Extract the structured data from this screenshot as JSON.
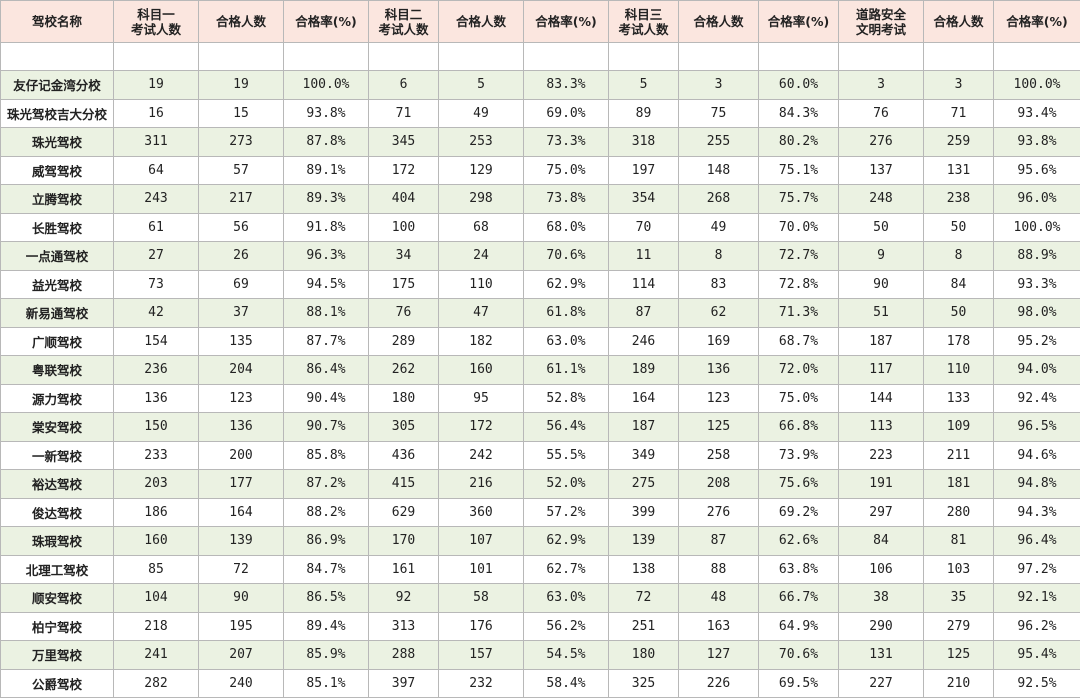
{
  "table": {
    "headers": [
      "驾校名称",
      "科目一\n考试人数",
      "合格人数",
      "合格率(%)",
      "科目二\n考试人数",
      "合格人数",
      "合格率(%)",
      "科目三\n考试人数",
      "合格人数",
      "合格率(%)",
      "道路安全\n文明考试",
      "合格人数",
      "合格率(%)"
    ],
    "rows": [
      [
        "友仔记金湾分校",
        "19",
        "19",
        "100.0%",
        "6",
        "5",
        "83.3%",
        "5",
        "3",
        "60.0%",
        "3",
        "3",
        "100.0%"
      ],
      [
        "珠光驾校吉大分校",
        "16",
        "15",
        "93.8%",
        "71",
        "49",
        "69.0%",
        "89",
        "75",
        "84.3%",
        "76",
        "71",
        "93.4%"
      ],
      [
        "珠光驾校",
        "311",
        "273",
        "87.8%",
        "345",
        "253",
        "73.3%",
        "318",
        "255",
        "80.2%",
        "276",
        "259",
        "93.8%"
      ],
      [
        "威驾驾校",
        "64",
        "57",
        "89.1%",
        "172",
        "129",
        "75.0%",
        "197",
        "148",
        "75.1%",
        "137",
        "131",
        "95.6%"
      ],
      [
        "立腾驾校",
        "243",
        "217",
        "89.3%",
        "404",
        "298",
        "73.8%",
        "354",
        "268",
        "75.7%",
        "248",
        "238",
        "96.0%"
      ],
      [
        "长胜驾校",
        "61",
        "56",
        "91.8%",
        "100",
        "68",
        "68.0%",
        "70",
        "49",
        "70.0%",
        "50",
        "50",
        "100.0%"
      ],
      [
        "一点通驾校",
        "27",
        "26",
        "96.3%",
        "34",
        "24",
        "70.6%",
        "11",
        "8",
        "72.7%",
        "9",
        "8",
        "88.9%"
      ],
      [
        "益光驾校",
        "73",
        "69",
        "94.5%",
        "175",
        "110",
        "62.9%",
        "114",
        "83",
        "72.8%",
        "90",
        "84",
        "93.3%"
      ],
      [
        "新易通驾校",
        "42",
        "37",
        "88.1%",
        "76",
        "47",
        "61.8%",
        "87",
        "62",
        "71.3%",
        "51",
        "50",
        "98.0%"
      ],
      [
        "广顺驾校",
        "154",
        "135",
        "87.7%",
        "289",
        "182",
        "63.0%",
        "246",
        "169",
        "68.7%",
        "187",
        "178",
        "95.2%"
      ],
      [
        "粤联驾校",
        "236",
        "204",
        "86.4%",
        "262",
        "160",
        "61.1%",
        "189",
        "136",
        "72.0%",
        "117",
        "110",
        "94.0%"
      ],
      [
        "源力驾校",
        "136",
        "123",
        "90.4%",
        "180",
        "95",
        "52.8%",
        "164",
        "123",
        "75.0%",
        "144",
        "133",
        "92.4%"
      ],
      [
        "棠安驾校",
        "150",
        "136",
        "90.7%",
        "305",
        "172",
        "56.4%",
        "187",
        "125",
        "66.8%",
        "113",
        "109",
        "96.5%"
      ],
      [
        "一新驾校",
        "233",
        "200",
        "85.8%",
        "436",
        "242",
        "55.5%",
        "349",
        "258",
        "73.9%",
        "223",
        "211",
        "94.6%"
      ],
      [
        "裕达驾校",
        "203",
        "177",
        "87.2%",
        "415",
        "216",
        "52.0%",
        "275",
        "208",
        "75.6%",
        "191",
        "181",
        "94.8%"
      ],
      [
        "俊达驾校",
        "186",
        "164",
        "88.2%",
        "629",
        "360",
        "57.2%",
        "399",
        "276",
        "69.2%",
        "297",
        "280",
        "94.3%"
      ],
      [
        "珠瑕驾校",
        "160",
        "139",
        "86.9%",
        "170",
        "107",
        "62.9%",
        "139",
        "87",
        "62.6%",
        "84",
        "81",
        "96.4%"
      ],
      [
        "北理工驾校",
        "85",
        "72",
        "84.7%",
        "161",
        "101",
        "62.7%",
        "138",
        "88",
        "63.8%",
        "106",
        "103",
        "97.2%"
      ],
      [
        "顺安驾校",
        "104",
        "90",
        "86.5%",
        "92",
        "58",
        "63.0%",
        "72",
        "48",
        "66.7%",
        "38",
        "35",
        "92.1%"
      ],
      [
        "柏宁驾校",
        "218",
        "195",
        "89.4%",
        "313",
        "176",
        "56.2%",
        "251",
        "163",
        "64.9%",
        "290",
        "279",
        "96.2%"
      ],
      [
        "万里驾校",
        "241",
        "207",
        "85.9%",
        "288",
        "157",
        "54.5%",
        "180",
        "127",
        "70.6%",
        "131",
        "125",
        "95.4%"
      ],
      [
        "公爵驾校",
        "282",
        "240",
        "85.1%",
        "397",
        "232",
        "58.4%",
        "325",
        "226",
        "69.5%",
        "227",
        "210",
        "92.5%"
      ]
    ]
  }
}
